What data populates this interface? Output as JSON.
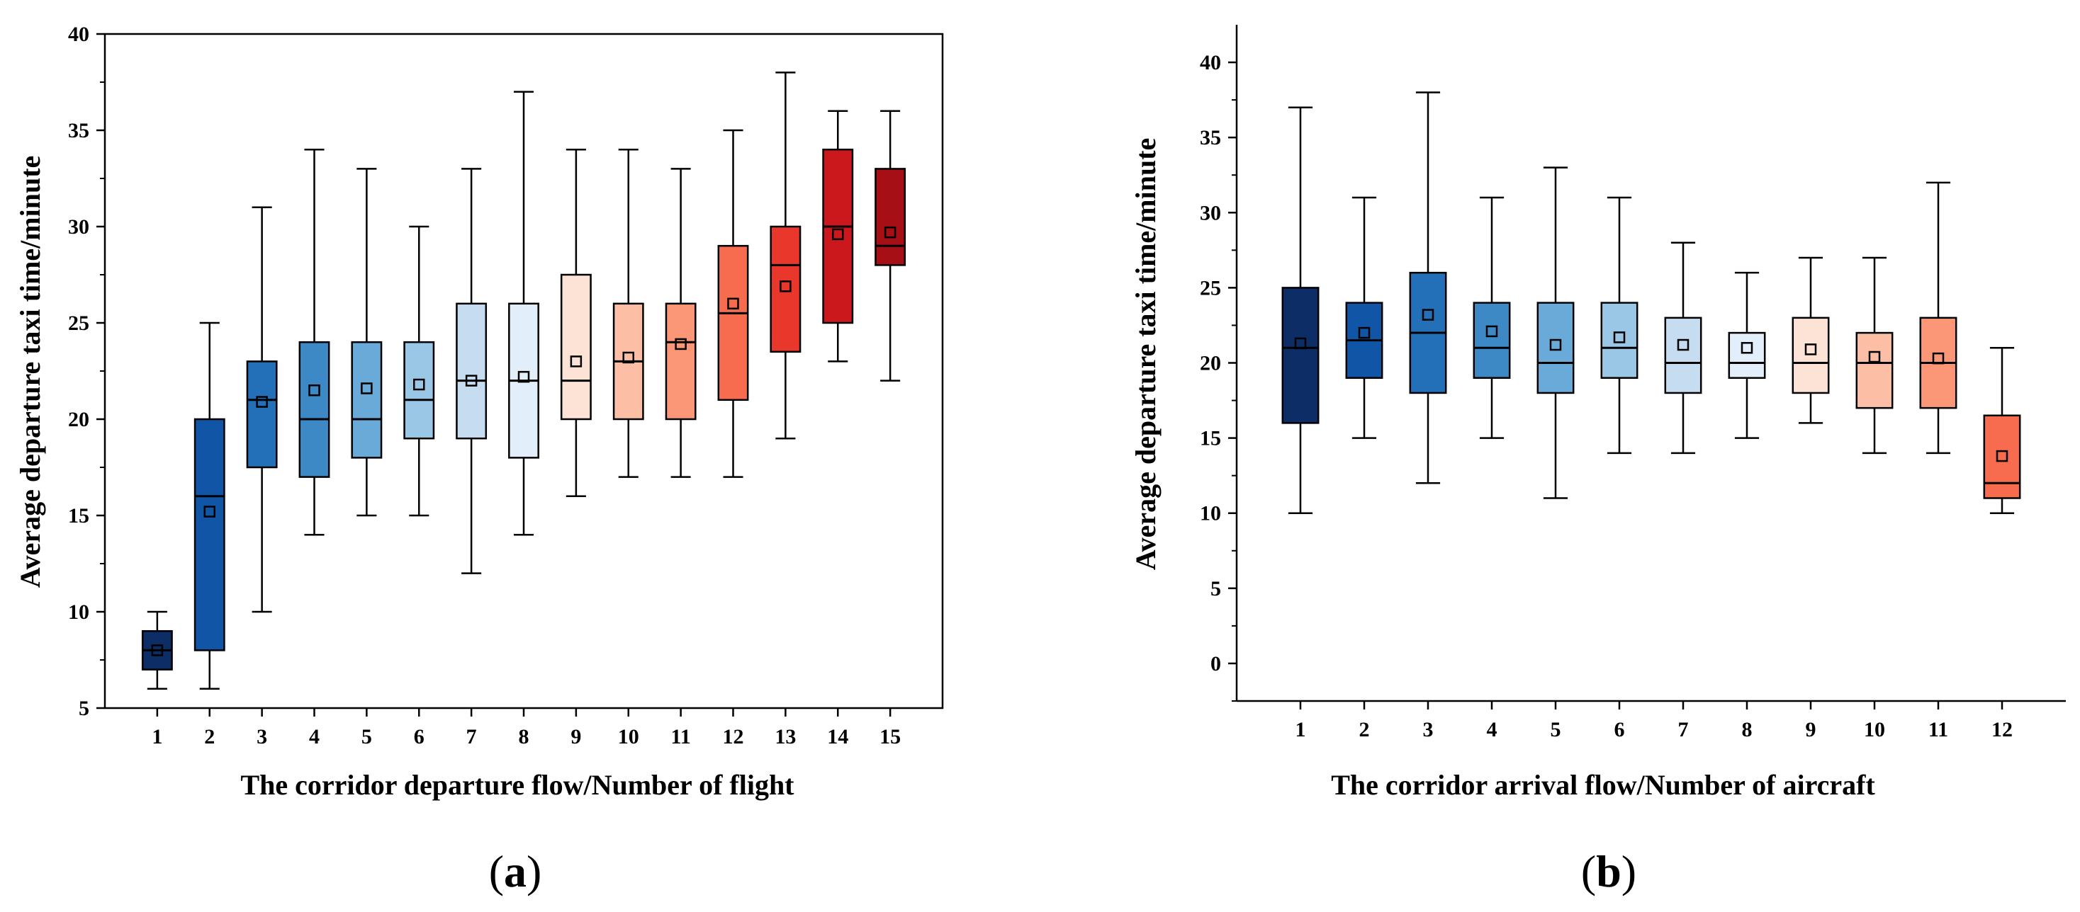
{
  "chart_data": [
    {
      "type": "box",
      "panel_label": "a",
      "title": "",
      "xlabel": "The corridor departure flow/Number of flight",
      "ylabel": "Average departure taxi time/minute",
      "ylim": [
        5,
        40
      ],
      "yticks": [
        5,
        10,
        15,
        20,
        25,
        30,
        35,
        40
      ],
      "categories": [
        "1",
        "2",
        "3",
        "4",
        "5",
        "6",
        "7",
        "8",
        "9",
        "10",
        "11",
        "12",
        "13",
        "14",
        "15"
      ],
      "boxes": [
        {
          "min": 6,
          "q1": 7,
          "median": 8,
          "q3": 9,
          "max": 10,
          "mean": 8.0,
          "color": "#0d2d66"
        },
        {
          "min": 6,
          "q1": 8,
          "median": 16,
          "q3": 20,
          "max": 25,
          "mean": 15.2,
          "color": "#1156a6"
        },
        {
          "min": 10,
          "q1": 17.5,
          "median": 21,
          "q3": 23,
          "max": 31,
          "mean": 20.9,
          "color": "#2470b8"
        },
        {
          "min": 14,
          "q1": 17,
          "median": 20,
          "q3": 24,
          "max": 34,
          "mean": 21.5,
          "color": "#3c89c6"
        },
        {
          "min": 15,
          "q1": 18,
          "median": 20,
          "q3": 24,
          "max": 33,
          "mean": 21.6,
          "color": "#6aaad8"
        },
        {
          "min": 15,
          "q1": 19,
          "median": 21,
          "q3": 24,
          "max": 30,
          "mean": 21.8,
          "color": "#9bc7e6"
        },
        {
          "min": 12,
          "q1": 19,
          "median": 22,
          "q3": 26,
          "max": 33,
          "mean": 22.0,
          "color": "#c6dcf1"
        },
        {
          "min": 14,
          "q1": 18,
          "median": 22,
          "q3": 26,
          "max": 37,
          "mean": 22.2,
          "color": "#e2eef9"
        },
        {
          "min": 16,
          "q1": 20,
          "median": 22,
          "q3": 27.5,
          "max": 34,
          "mean": 23.0,
          "color": "#fde2d6"
        },
        {
          "min": 17,
          "q1": 20,
          "median": 23,
          "q3": 26,
          "max": 34,
          "mean": 23.2,
          "color": "#fcbfa6"
        },
        {
          "min": 17,
          "q1": 20,
          "median": 24,
          "q3": 26,
          "max": 33,
          "mean": 23.9,
          "color": "#fb9776"
        },
        {
          "min": 17,
          "q1": 21,
          "median": 25.5,
          "q3": 29,
          "max": 35,
          "mean": 26.0,
          "color": "#f76c4e"
        },
        {
          "min": 19,
          "q1": 23.5,
          "median": 28,
          "q3": 30,
          "max": 38,
          "mean": 26.9,
          "color": "#e9372c"
        },
        {
          "min": 23,
          "q1": 25,
          "median": 30,
          "q3": 34,
          "max": 36,
          "mean": 29.6,
          "color": "#cb181d"
        },
        {
          "min": 22,
          "q1": 28,
          "median": 29,
          "q3": 33,
          "max": 36,
          "mean": 29.7,
          "color": "#a50f15"
        }
      ]
    },
    {
      "type": "box",
      "panel_label": "b",
      "title": "",
      "xlabel": "The corridor arrival flow/Number of aircraft",
      "ylabel": "Average departure taxi time/minute",
      "ylim": [
        -2.5,
        42.5
      ],
      "yticks": [
        0,
        5,
        10,
        15,
        20,
        25,
        30,
        35,
        40
      ],
      "categories": [
        "1",
        "2",
        "3",
        "4",
        "5",
        "6",
        "7",
        "8",
        "9",
        "10",
        "11",
        "12"
      ],
      "boxes": [
        {
          "min": 10,
          "q1": 16,
          "median": 21,
          "q3": 25,
          "max": 37,
          "mean": 21.3,
          "color": "#0d2d66"
        },
        {
          "min": 15,
          "q1": 19,
          "median": 21.5,
          "q3": 24,
          "max": 31,
          "mean": 22.0,
          "color": "#1156a6"
        },
        {
          "min": 12,
          "q1": 18,
          "median": 22,
          "q3": 26,
          "max": 38,
          "mean": 23.2,
          "color": "#2470b8"
        },
        {
          "min": 15,
          "q1": 19,
          "median": 21,
          "q3": 24,
          "max": 31,
          "mean": 22.1,
          "color": "#3c89c6"
        },
        {
          "min": 11,
          "q1": 18,
          "median": 20,
          "q3": 24,
          "max": 33,
          "mean": 21.2,
          "color": "#6aaad8"
        },
        {
          "min": 14,
          "q1": 19,
          "median": 21,
          "q3": 24,
          "max": 31,
          "mean": 21.7,
          "color": "#9bc7e6"
        },
        {
          "min": 14,
          "q1": 18,
          "median": 20,
          "q3": 23,
          "max": 28,
          "mean": 21.2,
          "color": "#c6dcf1"
        },
        {
          "min": 15,
          "q1": 19,
          "median": 20,
          "q3": 22,
          "max": 26,
          "mean": 21.0,
          "color": "#e2eef9"
        },
        {
          "min": 16,
          "q1": 18,
          "median": 20,
          "q3": 23,
          "max": 27,
          "mean": 20.9,
          "color": "#fde2d6"
        },
        {
          "min": 14,
          "q1": 17,
          "median": 20,
          "q3": 22,
          "max": 27,
          "mean": 20.4,
          "color": "#fcbfa6"
        },
        {
          "min": 14,
          "q1": 17,
          "median": 20,
          "q3": 23,
          "max": 32,
          "mean": 20.3,
          "color": "#fb9776"
        },
        {
          "min": 10,
          "q1": 11,
          "median": 12,
          "q3": 16.5,
          "max": 21,
          "mean": 13.8,
          "color": "#f76c4e"
        }
      ]
    }
  ]
}
